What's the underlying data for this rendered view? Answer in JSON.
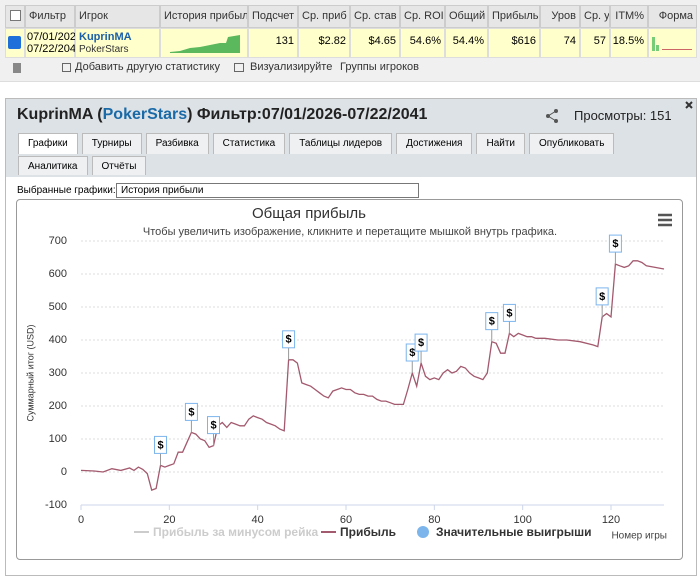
{
  "table": {
    "headers": [
      "Фильтр",
      "Игрок",
      "История прибыли",
      "Подсчет",
      "Ср. приб",
      "Ср. став",
      "Ср. ROI",
      "Общий",
      "Прибыль",
      "Уров",
      "Ср. уч",
      "ITM%",
      "Форма"
    ],
    "row": {
      "filter": [
        "07/01/202",
        "07/22/204"
      ],
      "player": "KuprinMA",
      "site": "PokerStars",
      "stats": [
        "131",
        "$2.82",
        "$4.65",
        "54.6%",
        "54.4%",
        "$616",
        "74",
        "57",
        "18.5%"
      ]
    }
  },
  "toolbar": [
    "Добавить другую статистику",
    "Визуализируйте",
    "Группы игроков"
  ],
  "panel": {
    "title_parts": [
      "KuprinMA",
      " (",
      "PokerStars",
      ")",
      " Фильтр:07/01/2026-07/22/2041"
    ],
    "views": "Просмотры: 151",
    "tabs": [
      "Графики",
      "Турниры",
      "Разбивка",
      "Статистика",
      "Таблицы лидеров",
      "Достижения",
      "Найти",
      "Опубликовать",
      "Аналитика",
      "Отчёты"
    ],
    "selector_label": "Выбранные графики:",
    "selected": "История прибыли"
  },
  "chart_data": {
    "type": "line",
    "title": "Общая прибыль",
    "subtitle": "Чтобы увеличить изображение, кликните и перетащите мышкой внутрь графика.",
    "xlabel": "Номер игры",
    "ylabel": "Суммарный итог (USD)",
    "xlim": [
      0,
      132
    ],
    "ylim": [
      -100,
      700
    ],
    "xticks": [
      0,
      20,
      40,
      60,
      80,
      100,
      120
    ],
    "yticks": [
      -100,
      0,
      100,
      200,
      300,
      400,
      500,
      600,
      700
    ],
    "grid": true,
    "flag_label": "$",
    "series": [
      {
        "name": "Прибыль за минусом рейка",
        "color": "#cccccc",
        "visible": false
      },
      {
        "name": "Прибыль",
        "color": "#a3596e",
        "x": [
          0,
          3,
          5,
          7,
          9,
          11,
          12,
          13,
          14,
          15,
          16,
          17,
          18,
          19,
          20,
          21,
          22,
          23,
          24,
          25,
          26,
          27,
          28,
          29,
          30,
          31,
          32,
          33,
          34,
          35,
          36,
          37,
          38,
          39,
          40,
          41,
          42,
          43,
          44,
          45,
          46,
          47,
          48,
          49,
          50,
          51,
          52,
          53,
          54,
          55,
          56,
          57,
          58,
          59,
          60,
          61,
          62,
          63,
          64,
          65,
          66,
          67,
          68,
          69,
          70,
          71,
          72,
          73,
          74,
          75,
          76,
          77,
          78,
          79,
          80,
          81,
          82,
          83,
          84,
          85,
          86,
          87,
          88,
          89,
          90,
          91,
          92,
          93,
          94,
          95,
          96,
          97,
          98,
          99,
          100,
          101,
          102,
          103,
          105,
          108,
          110,
          113,
          116,
          117,
          118,
          119,
          120,
          121,
          122,
          123,
          124,
          125,
          126,
          127,
          128,
          130,
          132
        ],
        "values": [
          5,
          3,
          0,
          10,
          5,
          12,
          5,
          15,
          8,
          -5,
          -55,
          -50,
          20,
          15,
          20,
          25,
          60,
          60,
          90,
          120,
          115,
          100,
          95,
          75,
          80,
          140,
          150,
          135,
          150,
          145,
          140,
          140,
          160,
          170,
          165,
          160,
          150,
          145,
          140,
          130,
          125,
          340,
          340,
          330,
          270,
          265,
          260,
          250,
          240,
          230,
          225,
          245,
          250,
          255,
          250,
          250,
          240,
          235,
          235,
          230,
          230,
          220,
          215,
          215,
          210,
          205,
          205,
          205,
          250,
          300,
          260,
          330,
          290,
          280,
          285,
          280,
          300,
          310,
          300,
          305,
          320,
          315,
          300,
          290,
          285,
          280,
          300,
          395,
          390,
          360,
          360,
          420,
          410,
          420,
          415,
          410,
          410,
          405,
          405,
          400,
          400,
          395,
          385,
          380,
          470,
          480,
          470,
          630,
          625,
          620,
          625,
          640,
          640,
          635,
          625,
          620,
          615
        ]
      },
      {
        "name": "Значительные выигрыши",
        "color": "#7cb5ec",
        "x": [
          18,
          25,
          30,
          47,
          75,
          77,
          93,
          97,
          118,
          121
        ],
        "values": [
          20,
          120,
          80,
          340,
          300,
          330,
          395,
          420,
          470,
          630
        ]
      }
    ]
  }
}
